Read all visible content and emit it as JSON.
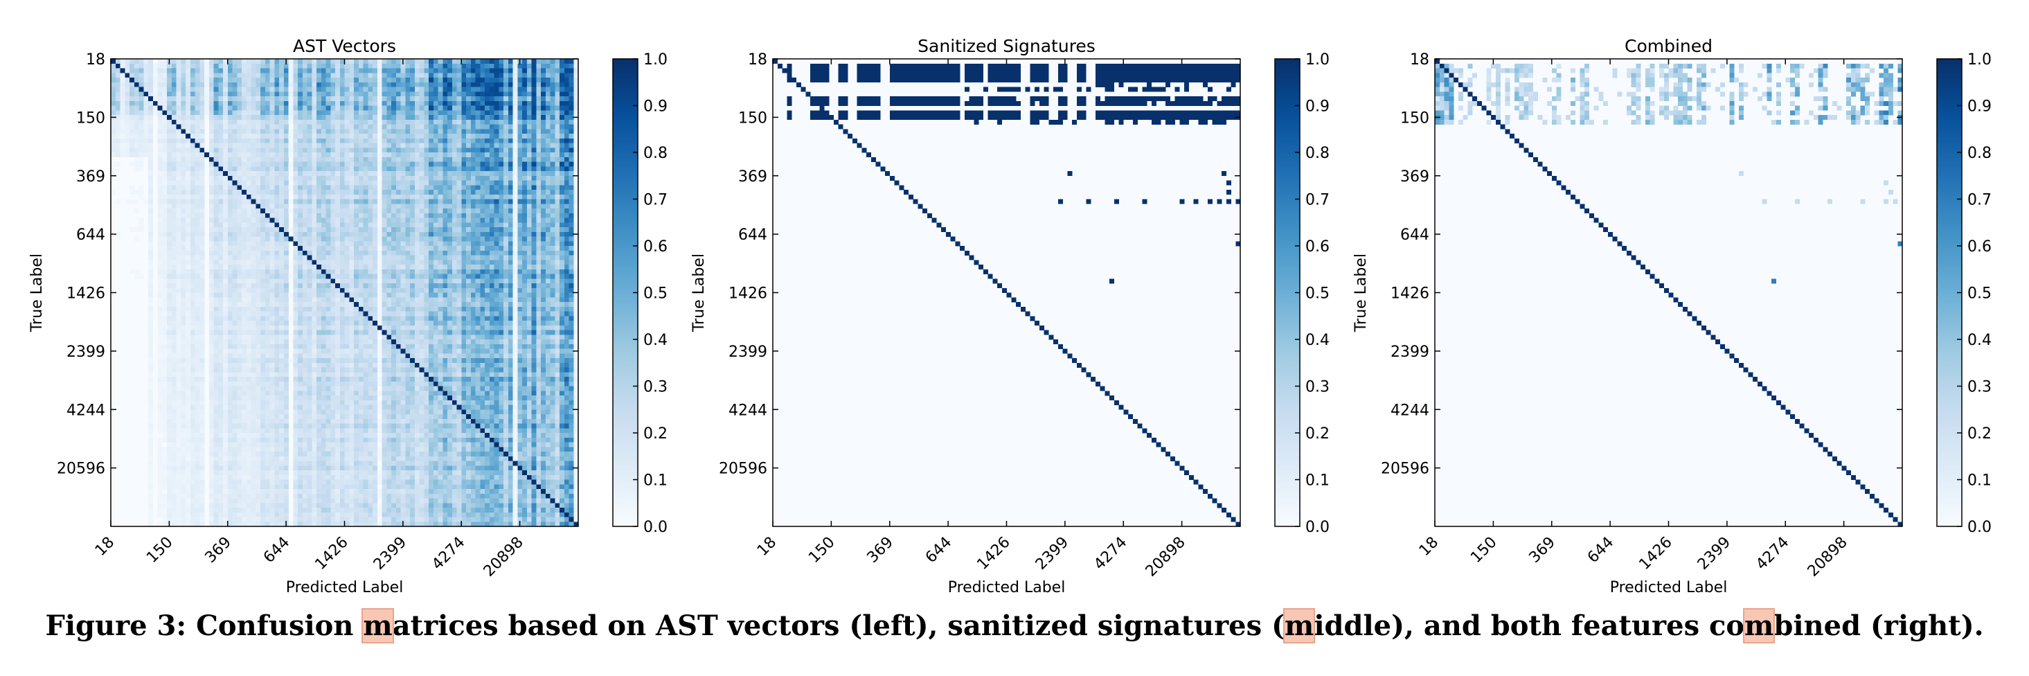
{
  "colormap": {
    "name": "Blues",
    "stops": [
      "#f7fbff",
      "#deebf7",
      "#c6dbef",
      "#9ecae1",
      "#6baed6",
      "#4292c6",
      "#2171b5",
      "#08519c",
      "#08306b"
    ]
  },
  "chart_data": [
    {
      "type": "heatmap",
      "title": "AST Vectors",
      "xlabel": "Predicted Label",
      "ylabel": "True Label",
      "matrix_size": 100,
      "y_tick_labels": [
        "18",
        "150",
        "369",
        "644",
        "1426",
        "2399",
        "4244",
        "20596"
      ],
      "x_tick_labels": [
        "18",
        "150",
        "369",
        "644",
        "1426",
        "2399",
        "4274",
        "20898"
      ],
      "value_range": [
        0.0,
        1.0
      ],
      "pattern": "diagonal near 1.0; off-diagonal confusion increasing toward the right columns (roughly 0.3-0.7), rows near the top darker",
      "colorbar_ticks": [
        "0.0",
        "0.1",
        "0.2",
        "0.3",
        "0.4",
        "0.5",
        "0.6",
        "0.7",
        "0.8",
        "0.9",
        "1.0"
      ]
    },
    {
      "type": "heatmap",
      "title": "Sanitized Signatures",
      "xlabel": "Predicted Label",
      "ylabel": "True Label",
      "matrix_size": 100,
      "y_tick_labels": [
        "18",
        "150",
        "369",
        "644",
        "1426",
        "2399",
        "4244",
        "20596"
      ],
      "x_tick_labels": [
        "18",
        "150",
        "369",
        "644",
        "1426",
        "2399",
        "4274",
        "20898"
      ],
      "value_range": [
        0.0,
        1.0
      ],
      "pattern": "diagonal at 1.0; top rows (labels 18-150) confused across nearly all columns at 1.0; a few isolated off-diagonal cells",
      "colorbar_ticks": [
        "0.0",
        "0.1",
        "0.2",
        "0.3",
        "0.4",
        "0.5",
        "0.6",
        "0.7",
        "0.8",
        "0.9",
        "1.0"
      ]
    },
    {
      "type": "heatmap",
      "title": "Combined",
      "xlabel": "Predicted Label",
      "ylabel": "True Label",
      "matrix_size": 100,
      "y_tick_labels": [
        "18",
        "150",
        "369",
        "644",
        "1426",
        "2399",
        "4244",
        "20596"
      ],
      "x_tick_labels": [
        "18",
        "150",
        "369",
        "644",
        "1426",
        "2399",
        "4274",
        "20898"
      ],
      "value_range": [
        0.0,
        1.0
      ],
      "pattern": "diagonal at 1.0; top rows show light-to-medium confusion (0.1-0.6); a few faint isolated cells elsewhere",
      "colorbar_ticks": [
        "0.0",
        "0.1",
        "0.2",
        "0.3",
        "0.4",
        "0.5",
        "0.6",
        "0.7",
        "0.8",
        "0.9",
        "1.0"
      ]
    }
  ],
  "caption": {
    "part1": "Figure 3: Confusion ",
    "m1": "m",
    "part2": "atrices based on AST vectors (left), sanitized signatures (",
    "m2": "m",
    "part3": "iddle), and both features co",
    "m3": "m",
    "part4": "bined (right)."
  }
}
